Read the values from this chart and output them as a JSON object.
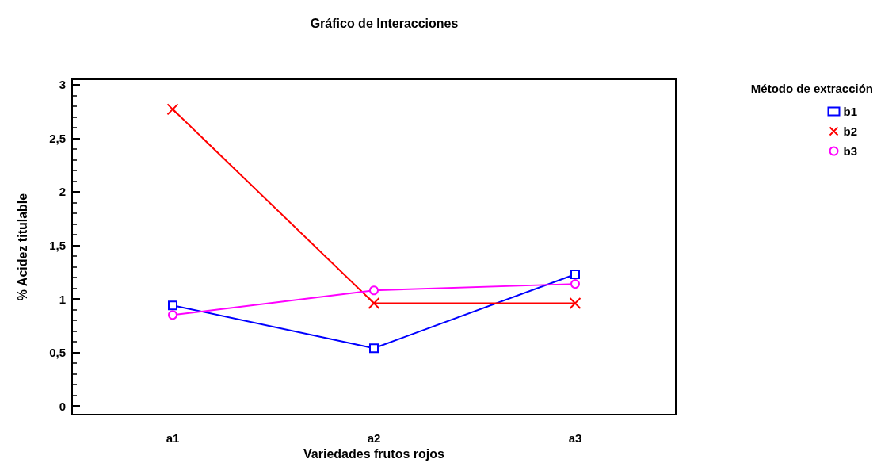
{
  "chart_data": {
    "type": "line",
    "title": "Gráfico de Interacciones",
    "xlabel": "Variedades frutos rojos",
    "ylabel": "% Acidez titulable",
    "legend_title": "Método de extracción",
    "categories": [
      "a1",
      "a2",
      "a3"
    ],
    "series": [
      {
        "name": "b1",
        "color": "#0000ff",
        "marker": "square",
        "values": [
          0.94,
          0.54,
          1.23
        ]
      },
      {
        "name": "b2",
        "color": "#ff0000",
        "marker": "cross",
        "values": [
          2.77,
          0.96,
          0.96
        ]
      },
      {
        "name": "b3",
        "color": "#ff00ff",
        "marker": "circle",
        "values": [
          0.85,
          1.08,
          1.14
        ]
      }
    ],
    "ylim": [
      -0.08,
      3.05
    ],
    "yticks": [
      0,
      {
        "value": 0.5,
        "label": "0,5"
      },
      1,
      {
        "value": 1.5,
        "label": "1,5"
      },
      2,
      {
        "value": 2.5,
        "label": "2,5"
      },
      3
    ],
    "grid": false,
    "legend": "top right",
    "line_style": "solid"
  }
}
